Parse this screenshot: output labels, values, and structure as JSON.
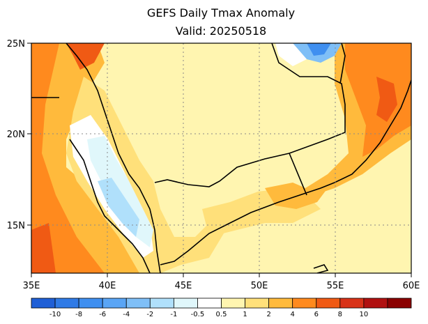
{
  "title": "GEFS Daily Tmax Anomaly",
  "subtitle": "Valid: 20250518",
  "map": {
    "lon_ticks": [
      "35E",
      "40E",
      "45E",
      "50E",
      "55E",
      "60E"
    ],
    "lat_ticks": [
      "25N",
      "20N",
      "15N"
    ],
    "lon_range": [
      35,
      60
    ],
    "lat_range": [
      12,
      25
    ],
    "gridlines": "dotted"
  },
  "colorbar": {
    "labels": [
      "-10",
      "-8",
      "-6",
      "-4",
      "-2",
      "-1",
      "-0.5",
      "0.5",
      "1",
      "2",
      "4",
      "6",
      "8",
      "10"
    ],
    "colors": [
      "#1f5fd6",
      "#2f7ae6",
      "#3f8ff0",
      "#5aa5f5",
      "#7fbff7",
      "#b0e0fb",
      "#e0f7fb",
      "#ffffff",
      "#fff5b0",
      "#ffe07a",
      "#ffba3c",
      "#ff8a1e",
      "#f05a14",
      "#d83218",
      "#b01010",
      "#8a0000"
    ]
  }
}
